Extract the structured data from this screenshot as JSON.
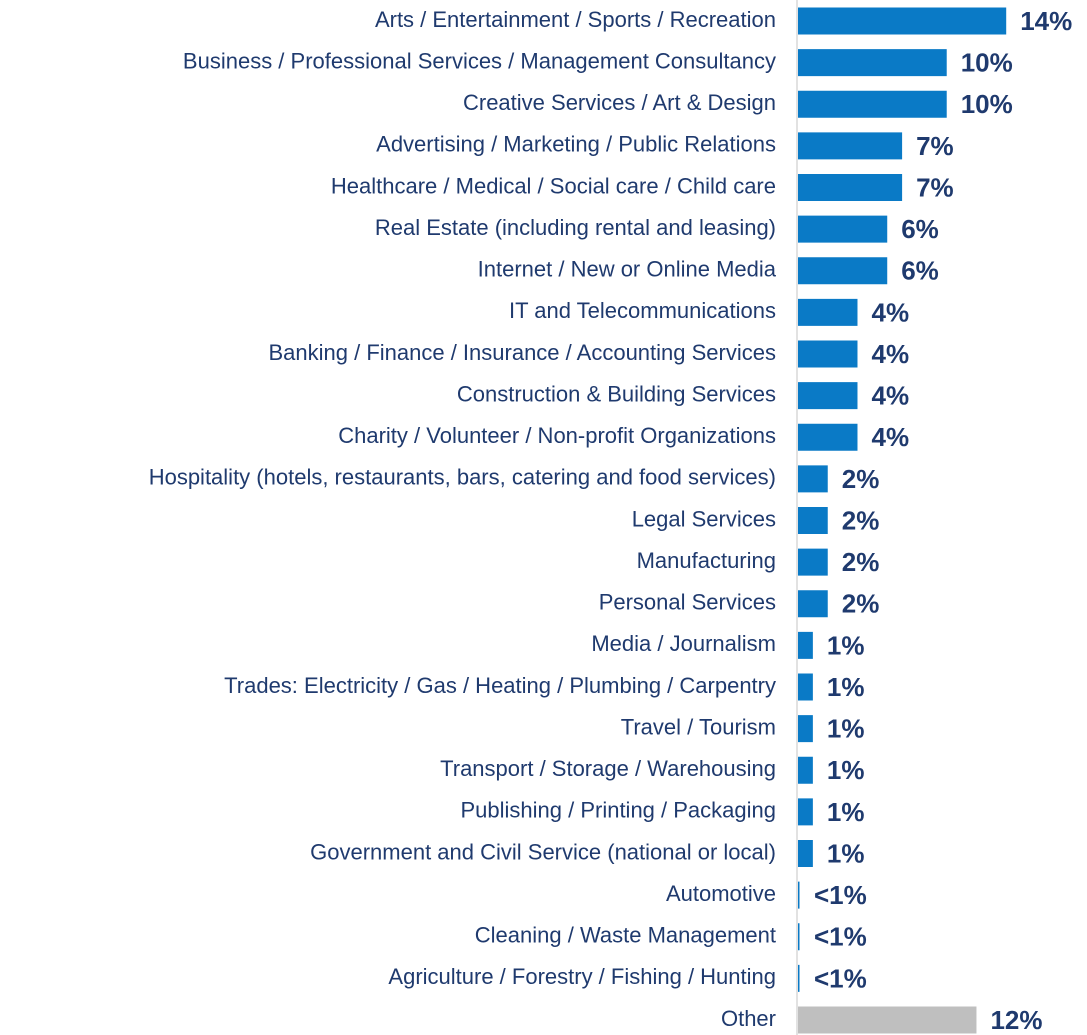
{
  "chart_data": {
    "type": "barh",
    "categories": [
      "Arts / Entertainment / Sports / Recreation",
      "Business / Professional Services / Management Consultancy",
      "Creative Services / Art & Design",
      "Advertising / Marketing / Public Relations",
      "Healthcare / Medical / Social care / Child care",
      "Real Estate (including rental and leasing)",
      "Internet / New or Online Media",
      "IT and Telecommunications",
      "Banking / Finance / Insurance / Accounting Services",
      "Construction & Building Services",
      "Charity / Volunteer / Non-profit Organizations",
      "Hospitality (hotels, restaurants, bars, catering and food services)",
      "Legal Services",
      "Manufacturing",
      "Personal Services",
      "Media / Journalism",
      "Trades: Electricity / Gas / Heating / Plumbing / Carpentry",
      "Travel / Tourism",
      "Transport / Storage / Warehousing",
      "Publishing / Printing / Packaging",
      "Government and Civil Service (national or local)",
      "Automotive",
      "Cleaning / Waste Management",
      "Agriculture / Forestry / Fishing / Hunting",
      "Other"
    ],
    "values": [
      14,
      10,
      10,
      7,
      7,
      6,
      6,
      4,
      4,
      4,
      4,
      2,
      2,
      2,
      2,
      1,
      1,
      1,
      1,
      1,
      1,
      0.1,
      0.1,
      0.1,
      12
    ],
    "value_labels": [
      "14%",
      "10%",
      "10%",
      "7%",
      "7%",
      "6%",
      "6%",
      "4%",
      "4%",
      "4%",
      "4%",
      "2%",
      "2%",
      "2%",
      "2%",
      "1%",
      "1%",
      "1%",
      "1%",
      "1%",
      "1%",
      "<1%",
      "<1%",
      "<1%",
      "12%"
    ],
    "colors": [
      "#0a7ac6",
      "#0a7ac6",
      "#0a7ac6",
      "#0a7ac6",
      "#0a7ac6",
      "#0a7ac6",
      "#0a7ac6",
      "#0a7ac6",
      "#0a7ac6",
      "#0a7ac6",
      "#0a7ac6",
      "#0a7ac6",
      "#0a7ac6",
      "#0a7ac6",
      "#0a7ac6",
      "#0a7ac6",
      "#0a7ac6",
      "#0a7ac6",
      "#0a7ac6",
      "#0a7ac6",
      "#0a7ac6",
      "#0a7ac6",
      "#0a7ac6",
      "#0a7ac6",
      "#bfbfbf"
    ],
    "xlim": [
      0,
      19.5
    ]
  }
}
